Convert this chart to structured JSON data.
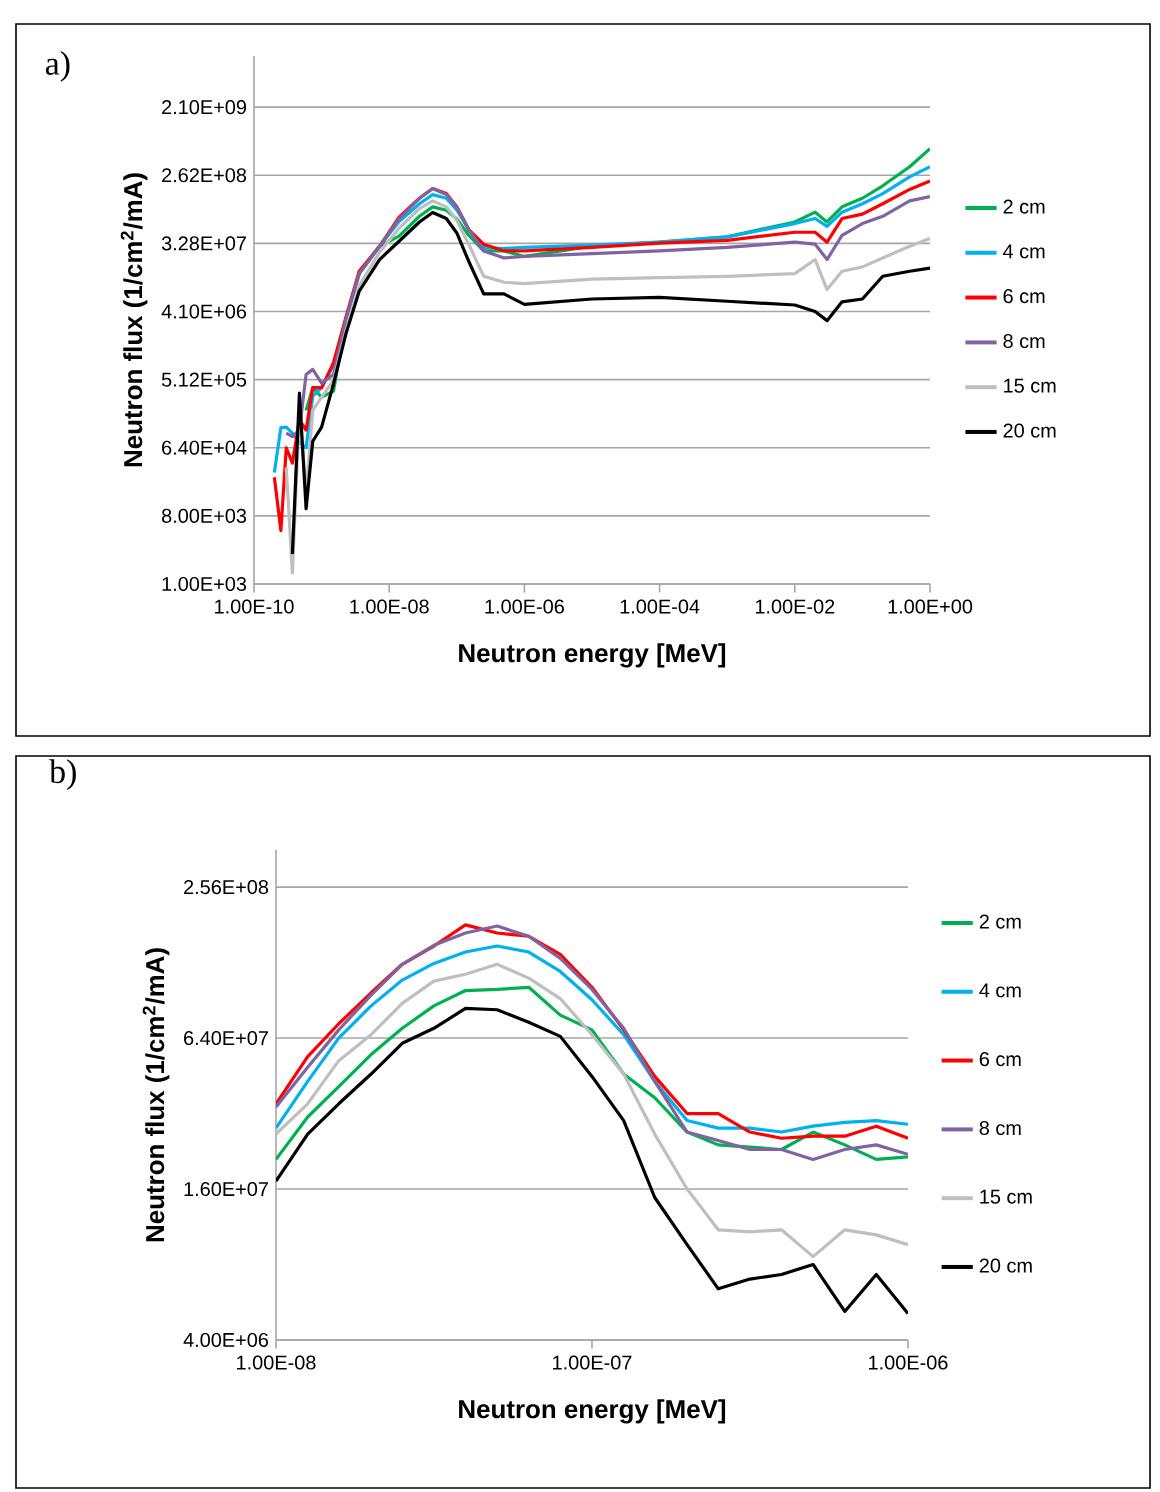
{
  "chart_data": [
    {
      "type": "line",
      "title": "a)",
      "xlabel": "Neutron energy [MeV]",
      "ylabel": "Neutron flux (1/cm$^{2}$/mA)",
      "log": "xy",
      "grid": "y",
      "legend": "right",
      "x": [
        2e-10,
        2.5e-10,
        3e-10,
        3.7e-10,
        4.7e-10,
        5.9e-10,
        7.4e-10,
        1e-09,
        1.5e-09,
        2.3e-09,
        3.6e-09,
        7.2e-09,
        1.4e-08,
        2.8e-08,
        4.4e-08,
        7e-08,
        1e-07,
        1.5e-07,
        2.5e-07,
        5e-07,
        1e-06,
        1e-05,
        0.0001,
        0.001,
        0.01,
        0.02,
        0.03,
        0.05,
        0.1,
        0.2,
        0.5,
        1
      ],
      "xlim": [
        1e-10,
        1
      ],
      "ylim": [
        1000,
        10000000000.0
      ],
      "xticks": [
        {
          "value": 1e-10,
          "label": "1.00E-10"
        },
        {
          "value": 1e-08,
          "label": "1.00E-08"
        },
        {
          "value": 1e-06,
          "label": "1.00E-06"
        },
        {
          "value": 0.0001,
          "label": "1.00E-04"
        },
        {
          "value": 0.01,
          "label": "1.00E-02"
        },
        {
          "value": 1,
          "label": "1.00E+00"
        }
      ],
      "yticks": [
        {
          "value": 1000,
          "label": "1.00E+03"
        },
        {
          "value": 8000,
          "label": "8.00E+03"
        },
        {
          "value": 64000,
          "label": "6.40E+04"
        },
        {
          "value": 512000,
          "label": "5.12E+05"
        },
        {
          "value": 4096000,
          "label": "4.10E+06"
        },
        {
          "value": 32768000,
          "label": "3.28E+07"
        },
        {
          "value": 262144000,
          "label": "2.62E+08"
        },
        {
          "value": 2097152000,
          "label": "2.10E+09"
        }
      ],
      "series": [
        {
          "name": "2 cm",
          "color": "#00b050",
          "values": [
            null,
            null,
            null,
            null,
            null,
            200000.0,
            400000.0,
            300000.0,
            360000.0,
            3300000.0,
            13000000.0,
            30000000.0,
            41000000.0,
            75000000.0,
            100000000.0,
            90000000.0,
            69000000.0,
            42000000.0,
            26000000.0,
            26000000.0,
            22000000.0,
            30000000.0,
            34000000.0,
            40000000.0,
            63000000.0,
            85000000.0,
            63000000.0,
            100000000.0,
            130000000.0,
            190000000.0,
            340000000.0,
            590000000.0
          ]
        },
        {
          "name": "4 cm",
          "color": "#00b0f0",
          "values": [
            30000.0,
            118000.0,
            120000.0,
            100000.0,
            75000.0,
            64000.0,
            310000.0,
            400000.0,
            800000.0,
            3300000.0,
            13000000.0,
            30000000.0,
            64000000.0,
            110000000.0,
            145000000.0,
            130000000.0,
            91000000.0,
            50000000.0,
            29000000.0,
            28000000.0,
            29000000.0,
            31000000.0,
            34000000.0,
            40000000.0,
            60000000.0,
            70000000.0,
            55000000.0,
            85000000.0,
            110000000.0,
            150000000.0,
            250000000.0,
            340000000.0
          ]
        },
        {
          "name": "6 cm",
          "color": "#ff0000",
          "values": [
            26000.0,
            5100.0,
            64000.0,
            40000.0,
            150000.0,
            110000.0,
            400000.0,
            400000.0,
            860000.0,
            3500000.0,
            14000000.0,
            30000000.0,
            73000000.0,
            130000000.0,
            175000000.0,
            150000000.0,
            100000000.0,
            50000000.0,
            32000000.0,
            26000000.0,
            26000000.0,
            29000000.0,
            33000000.0,
            36000000.0,
            46000000.0,
            46000000.0,
            34000000.0,
            70000000.0,
            80000000.0,
            110000000.0,
            170000000.0,
            220000000.0
          ]
        },
        {
          "name": "8 cm",
          "color": "#8064a2",
          "values": [
            null,
            null,
            100000.0,
            90000.0,
            110000.0,
            600000.0,
            700000.0,
            460000.0,
            600000.0,
            3300000.0,
            13000000.0,
            30000000.0,
            69000000.0,
            130000000.0,
            175000000.0,
            145000000.0,
            100000000.0,
            50000000.0,
            26000000.0,
            21000000.0,
            22000000.0,
            24000000.0,
            26000000.0,
            29000000.0,
            34000000.0,
            32000000.0,
            20000000.0,
            42000000.0,
            60000000.0,
            75000000.0,
            120000000.0,
            137000000.0
          ]
        },
        {
          "name": "15 cm",
          "color": "#bfbfbf",
          "values": [
            null,
            null,
            35000.0,
            1400.0,
            200000.0,
            16000.0,
            200000.0,
            300000.0,
            500000.0,
            2300000.0,
            9000000.0,
            25000000.0,
            52000000.0,
            95000000.0,
            120000000.0,
            100000000.0,
            66000000.0,
            32000000.0,
            12000000.0,
            10000000.0,
            9600000.0,
            11000000.0,
            11500000.0,
            12000000.0,
            13000000.0,
            20000000.0,
            8000000.0,
            14000000.0,
            16000000.0,
            21000000.0,
            30000000.0,
            38000000.0
          ]
        },
        {
          "name": "20 cm",
          "color": "#000000",
          "values": [
            null,
            null,
            null,
            2500.0,
            340000.0,
            10000.0,
            78000.0,
            120000.0,
            450000.0,
            2100000.0,
            7600000.0,
            20000000.0,
            35000000.0,
            63000000.0,
            84000000.0,
            70000000.0,
            45000000.0,
            19000000.0,
            7000000.0,
            7000000.0,
            5100000.0,
            6000000.0,
            6300000.0,
            5600000.0,
            5000000.0,
            4100000.0,
            3100000.0,
            5500000.0,
            6000000.0,
            12000000.0,
            14000000.0,
            15400000.0
          ]
        }
      ]
    },
    {
      "type": "line",
      "title": "b)",
      "xlabel": "Neutron energy [MeV]",
      "ylabel": "Neutron flux (1/cm$^{2}$/mA)",
      "log": "xy",
      "grid": "y",
      "legend": "right",
      "x": [
        1e-08,
        1.26e-08,
        1.58e-08,
        2e-08,
        2.51e-08,
        3.16e-08,
        3.98e-08,
        5.01e-08,
        6.31e-08,
        7.94e-08,
        1e-07,
        1.26e-07,
        1.58e-07,
        2e-07,
        2.51e-07,
        3.16e-07,
        3.98e-07,
        5.01e-07,
        6.31e-07,
        7.94e-07,
        1e-06
      ],
      "xlim": [
        1e-08,
        1e-06
      ],
      "ylim": [
        4000000,
        360000000
      ],
      "xticks": [
        {
          "value": 1e-08,
          "label": "1.00E-08"
        },
        {
          "value": 1e-07,
          "label": "1.00E-07"
        },
        {
          "value": 1e-06,
          "label": "1.00E-06"
        }
      ],
      "yticks": [
        {
          "value": 4000000,
          "label": "4.00E+06"
        },
        {
          "value": 16000000,
          "label": "1.60E+07"
        },
        {
          "value": 64000000,
          "label": "6.40E+07"
        },
        {
          "value": 256000000,
          "label": "2.56E+08"
        }
      ],
      "series": [
        {
          "name": "2 cm",
          "color": "#00b050",
          "values": [
            21000000.0,
            31000000.0,
            41000000.0,
            55000000.0,
            70000000.0,
            86000000.0,
            99000000.0,
            100000000.0,
            102000000.0,
            79000000.0,
            69000000.0,
            46000000.0,
            37000000.0,
            27000000.0,
            24000000.0,
            23500000.0,
            23000000.0,
            27000000.0,
            24000000.0,
            21000000.0,
            21500000.0
          ]
        },
        {
          "name": "4 cm",
          "color": "#00b0f0",
          "values": [
            28000000.0,
            43000000.0,
            64000000.0,
            86000000.0,
            109000000.0,
            127000000.0,
            141000000.0,
            149000000.0,
            141000000.0,
            118000000.0,
            91000000.0,
            66000000.0,
            43000000.0,
            30000000.0,
            28000000.0,
            28000000.0,
            27000000.0,
            28500000.0,
            29500000.0,
            30000000.0,
            29000000.0
          ]
        },
        {
          "name": "6 cm",
          "color": "#ff0000",
          "values": [
            35000000.0,
            54000000.0,
            73000000.0,
            97000000.0,
            126000000.0,
            149000000.0,
            181000000.0,
            168000000.0,
            163000000.0,
            138000000.0,
            102000000.0,
            69000000.0,
            45000000.0,
            32000000.0,
            32000000.0,
            27000000.0,
            25500000.0,
            26000000.0,
            26000000.0,
            28500000.0,
            25500000.0
          ]
        },
        {
          "name": "8 cm",
          "color": "#8064a2",
          "values": [
            34000000.0,
            49000000.0,
            69000000.0,
            95000000.0,
            126000000.0,
            150000000.0,
            168000000.0,
            179000000.0,
            163000000.0,
            133000000.0,
            100000000.0,
            70000000.0,
            43000000.0,
            27000000.0,
            25000000.0,
            23000000.0,
            23000000.0,
            21000000.0,
            23000000.0,
            24000000.0,
            22000000.0
          ]
        },
        {
          "name": "15 cm",
          "color": "#bfbfbf",
          "values": [
            26500000.0,
            35000000.0,
            52000000.0,
            66000000.0,
            88000000.0,
            108000000.0,
            115000000.0,
            126000000.0,
            111000000.0,
            92000000.0,
            66000000.0,
            46000000.0,
            26500000.0,
            16000000.0,
            11000000.0,
            10800000.0,
            11000000.0,
            8600000.0,
            11000000.0,
            10500000.0,
            9600000.0
          ]
        },
        {
          "name": "20 cm",
          "color": "#000000",
          "values": [
            17200000.0,
            26500000.0,
            35000000.0,
            46000000.0,
            61000000.0,
            70000000.0,
            84000000.0,
            83000000.0,
            74000000.0,
            65000000.0,
            45000000.0,
            30000000.0,
            14800000.0,
            9600000.0,
            6400000.0,
            7000000.0,
            7300000.0,
            8000000.0,
            5200000.0,
            7300000.0,
            5100000.0
          ]
        }
      ]
    }
  ]
}
